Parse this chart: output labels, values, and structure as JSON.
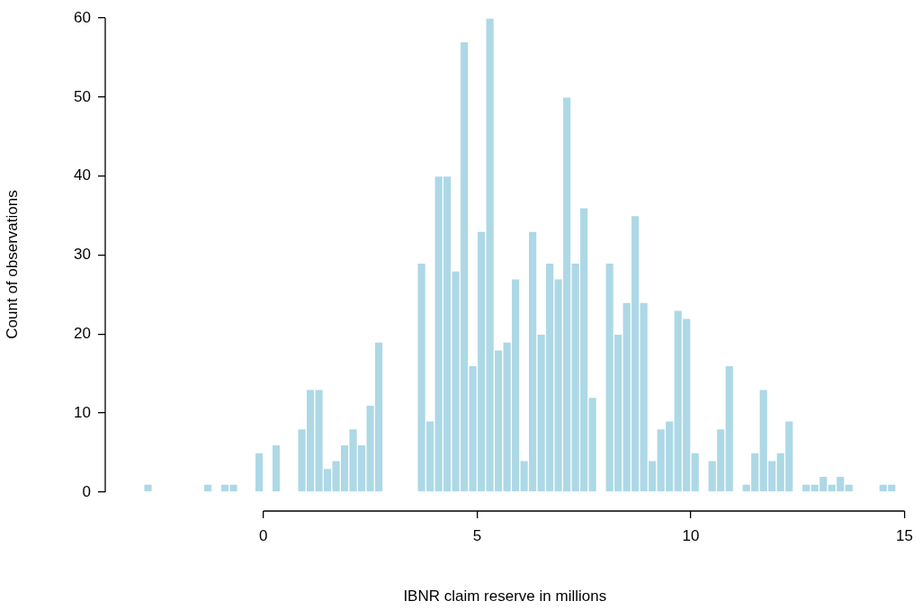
{
  "chart_data": {
    "type": "histogram",
    "xlabel": "IBNR claim reserve in millions",
    "ylabel": "Count of observations",
    "color": "#add8e6",
    "bins": [
      -2.8,
      -2.6,
      -2.4,
      -2.2,
      -2.0,
      -1.8,
      -1.6,
      -1.4,
      -1.2,
      -1.0,
      -0.8,
      -0.6,
      -0.4,
      -0.2,
      0,
      0.2,
      0.4,
      0.6,
      0.8,
      1.0,
      1.2,
      1.4,
      1.6,
      1.8,
      2.0,
      2.2,
      2.4,
      2.6,
      2.8,
      3.0,
      3.2,
      3.4,
      3.6,
      3.8,
      4.0,
      4.2,
      4.4,
      4.6,
      4.8,
      5.0,
      5.2,
      5.4,
      5.6,
      5.8,
      6.0,
      6.2,
      6.4,
      6.6,
      6.8,
      7.0,
      7.2,
      7.4,
      7.6,
      7.8,
      8.0,
      8.2,
      8.4,
      8.6,
      8.8,
      9.0,
      9.2,
      9.4,
      9.6,
      9.8,
      10.0,
      10.2,
      10.4,
      10.6,
      10.8,
      11.0,
      11.2,
      11.4,
      11.6,
      11.8,
      12.0,
      12.2,
      12.4,
      12.6,
      12.8,
      13.0,
      13.2,
      13.4,
      13.6,
      13.8,
      14.0,
      14.2,
      14.4,
      14.6,
      14.8
    ],
    "values": [
      1,
      0,
      0,
      0,
      0,
      0,
      0,
      1,
      0,
      1,
      1,
      0,
      0,
      5,
      0,
      6,
      0,
      0,
      8,
      13,
      13,
      3,
      4,
      6,
      8,
      6,
      11,
      19,
      0,
      0,
      0,
      0,
      29,
      9,
      40,
      40,
      28,
      57,
      16,
      33,
      60,
      18,
      19,
      27,
      4,
      33,
      20,
      29,
      27,
      50,
      29,
      36,
      12,
      0,
      29,
      20,
      24,
      35,
      24,
      4,
      8,
      9,
      23,
      22,
      5,
      0,
      4,
      8,
      16,
      0,
      1,
      5,
      13,
      4,
      5,
      9,
      0,
      1,
      1,
      2,
      1,
      2,
      1,
      0,
      0,
      0,
      1,
      1
    ],
    "xlim": [
      -3.7,
      15
    ],
    "ylim": [
      -2.4,
      60
    ],
    "xticks": [
      0,
      5,
      10,
      15
    ],
    "yticks": [
      0,
      10,
      20,
      30,
      40,
      50,
      60
    ]
  }
}
